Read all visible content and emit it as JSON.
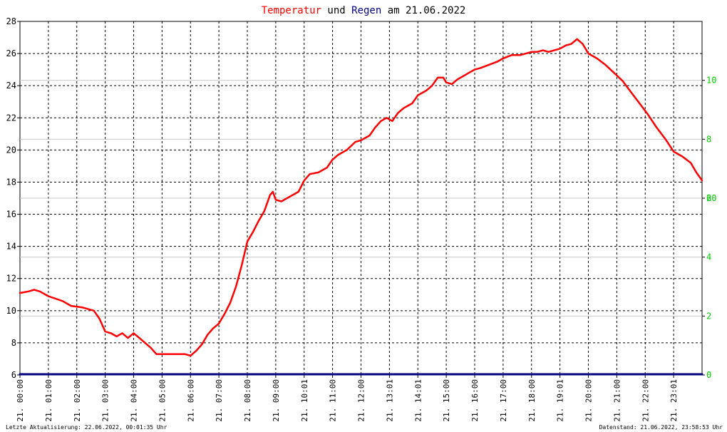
{
  "title": {
    "part1": "Temperatur",
    "part2": " und ",
    "part3": "Regen",
    "part4": " am 21.06.2022",
    "color_temp": "#ff0000",
    "color_rain": "#000080",
    "color_text": "#000000"
  },
  "footer": {
    "left": "Letzte Aktualisierung: 22.06.2022, 00:01:35 Uhr",
    "right": "Datenstand: 21.06.2022, 23:58:53 Uhr"
  },
  "chart_data": {
    "type": "line",
    "title": "Temperatur und Regen am 21.06.2022",
    "x_tick_labels": [
      "21. 00:00",
      "21. 01:00",
      "21. 02:00",
      "21. 03:00",
      "21. 04:00",
      "21. 05:00",
      "21. 06:00",
      "21. 07:00",
      "21. 08:00",
      "21. 09:00",
      "21. 10:01",
      "21. 11:00",
      "21. 12:00",
      "21. 13:01",
      "21. 14:01",
      "21. 15:00",
      "21. 16:00",
      "21. 17:00",
      "21. 18:00",
      "21. 19:01",
      "21. 20:00",
      "21. 21:00",
      "21. 22:00",
      "21. 23:01"
    ],
    "xlim": [
      0,
      24
    ],
    "y_left": {
      "ticks": [
        6,
        8,
        10,
        12,
        14,
        16,
        18,
        20,
        22,
        24,
        26,
        28
      ],
      "ylim": [
        6,
        28
      ]
    },
    "y_right": {
      "ticks": [
        0,
        2,
        4,
        6,
        8,
        10,
        20
      ],
      "tick_labels": [
        "0",
        "2",
        "4",
        "6",
        "8",
        "10",
        "20"
      ],
      "tick_color": "#00cc00"
    },
    "grid": true,
    "series": [
      {
        "name": "Temperatur",
        "color": "#ff0000",
        "x": [
          0,
          0.3,
          0.5,
          0.7,
          1.0,
          1.5,
          1.8,
          2.2,
          2.4,
          2.6,
          2.8,
          3.0,
          3.2,
          3.4,
          3.6,
          3.8,
          4.0,
          4.2,
          4.4,
          4.6,
          4.8,
          5.0,
          5.5,
          5.8,
          6.0,
          6.2,
          6.4,
          6.6,
          6.8,
          7.0,
          7.2,
          7.4,
          7.6,
          7.8,
          8.0,
          8.2,
          8.4,
          8.6,
          8.8,
          8.9,
          9.0,
          9.2,
          9.5,
          9.8,
          10.0,
          10.2,
          10.5,
          10.8,
          11.0,
          11.2,
          11.5,
          11.8,
          12.0,
          12.3,
          12.5,
          12.7,
          12.9,
          13.1,
          13.3,
          13.5,
          13.8,
          14.0,
          14.3,
          14.5,
          14.7,
          14.9,
          15.0,
          15.2,
          15.4,
          15.6,
          15.8,
          16.0,
          16.2,
          16.5,
          16.8,
          17.0,
          17.3,
          17.6,
          17.8,
          18.0,
          18.2,
          18.4,
          18.6,
          18.8,
          19.0,
          19.2,
          19.4,
          19.6,
          19.8,
          20.0,
          20.3,
          20.6,
          20.9,
          21.2,
          21.5,
          21.8,
          22.1,
          22.4,
          22.7,
          23.0,
          23.3,
          23.6,
          23.8,
          24.0
        ],
        "y": [
          11.1,
          11.2,
          11.3,
          11.2,
          10.9,
          10.6,
          10.3,
          10.2,
          10.1,
          10.0,
          9.5,
          8.7,
          8.6,
          8.4,
          8.6,
          8.3,
          8.6,
          8.3,
          8.0,
          7.7,
          7.3,
          7.3,
          7.3,
          7.3,
          7.2,
          7.5,
          7.9,
          8.5,
          8.9,
          9.2,
          9.8,
          10.5,
          11.5,
          12.8,
          14.3,
          14.9,
          15.6,
          16.2,
          17.2,
          17.4,
          16.9,
          16.8,
          17.1,
          17.4,
          18.1,
          18.5,
          18.6,
          18.9,
          19.4,
          19.7,
          20.0,
          20.5,
          20.6,
          20.9,
          21.4,
          21.8,
          22.0,
          21.8,
          22.3,
          22.6,
          22.9,
          23.4,
          23.7,
          24.0,
          24.5,
          24.5,
          24.2,
          24.1,
          24.4,
          24.6,
          24.8,
          25.0,
          25.1,
          25.3,
          25.5,
          25.7,
          25.9,
          25.9,
          26.0,
          26.1,
          26.1,
          26.2,
          26.1,
          26.2,
          26.3,
          26.5,
          26.6,
          26.9,
          26.6,
          26.0,
          25.7,
          25.3,
          24.8,
          24.3,
          23.6,
          22.9,
          22.2,
          21.4,
          20.7,
          19.9,
          19.6,
          19.2,
          18.6,
          18.1
        ]
      },
      {
        "name": "Regen",
        "color": "#000080",
        "x": [
          0,
          24
        ],
        "y": [
          0,
          0
        ]
      }
    ]
  }
}
